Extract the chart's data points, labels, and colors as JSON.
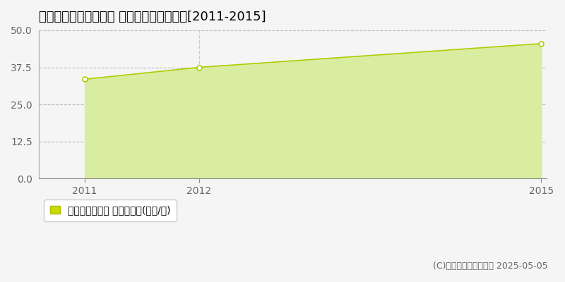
{
  "title": "名古屋市守山区太田井 マンション価格推移[2011-2015]",
  "x_values": [
    2011,
    2012,
    2015
  ],
  "y_values": [
    33.5,
    37.5,
    45.5
  ],
  "fill_color": "#d8eda0",
  "fill_alpha": 1.0,
  "line_color": "#b0cc00",
  "line_width": 1.2,
  "marker_color": "#ffffff",
  "marker_edge_color": "#b0cc00",
  "marker_size": 5,
  "ylim": [
    0,
    50
  ],
  "yticks": [
    0,
    12.5,
    25,
    37.5,
    50
  ],
  "xticks": [
    2011,
    2012,
    2015
  ],
  "grid_color": "#bbbbbb",
  "bg_color": "#f5f5f5",
  "plot_bg_color": "#f5f5f5",
  "legend_label": "マンション価格 平均坪単価(万円/坪)",
  "legend_color": "#c8dc00",
  "copyright_text": "(C)土地価格ドットコム 2025-05-05",
  "title_fontsize": 13,
  "tick_fontsize": 10,
  "tick_color": "#666666",
  "legend_fontsize": 10,
  "copyright_fontsize": 9,
  "vline_x": 2012,
  "vline_color": "#cccccc",
  "vline_style": "--",
  "xlim_left": 2010.6,
  "xlim_right": 2015.05
}
